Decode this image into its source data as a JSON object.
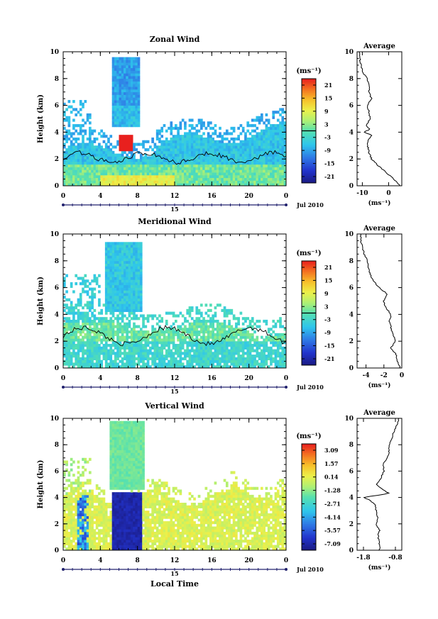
{
  "chart_data": [
    {
      "type": "heatmap",
      "title": "Zonal Wind",
      "xlabel": "",
      "ylabel": "Height (km)",
      "xlim": [
        0,
        24
      ],
      "ylim": [
        0,
        10
      ],
      "x_ticks": [
        "0",
        "4",
        "8",
        "12",
        "16",
        "20",
        "0"
      ],
      "y_ticks": [
        "0",
        "2",
        "4",
        "6",
        "8",
        "10"
      ],
      "date_day": "15",
      "date_label": "Jul 2010",
      "colorbar": {
        "unit": "(ms⁻¹)",
        "ticks": [
          "21",
          "15",
          "9",
          "3",
          "-3",
          "-9",
          "-15",
          "-21"
        ],
        "range": [
          -24,
          24
        ],
        "zero_line": true
      },
      "average_profile": {
        "title": "Average",
        "xlabel": "(ms⁻¹)",
        "x_ticks": [
          "-10",
          "0"
        ],
        "xlim": [
          -12,
          5
        ],
        "heights": [
          0,
          0.5,
          1,
          1.5,
          2,
          2.5,
          3,
          3.5,
          3.8,
          4,
          4.2,
          4.5,
          5,
          5.5,
          6,
          6.5,
          7,
          7.5,
          8,
          8.5,
          9,
          9.5,
          10
        ],
        "values": [
          4.5,
          2,
          -1,
          -4,
          -6.5,
          -7.5,
          -8,
          -7.5,
          -6.5,
          -9.5,
          -7,
          -8.5,
          -7,
          -7.5,
          -8,
          -6.5,
          -7.5,
          -7.5,
          -8,
          -10,
          -10.5,
          -11,
          -11
        ]
      }
    },
    {
      "type": "heatmap",
      "title": "Meridional Wind",
      "xlabel": "",
      "ylabel": "Height (km)",
      "xlim": [
        0,
        24
      ],
      "ylim": [
        0,
        10
      ],
      "x_ticks": [
        "0",
        "4",
        "8",
        "12",
        "16",
        "20",
        "0"
      ],
      "y_ticks": [
        "0",
        "2",
        "4",
        "6",
        "8",
        "10"
      ],
      "date_day": "15",
      "date_label": "Jul 2010",
      "colorbar": {
        "unit": "(ms⁻¹)",
        "ticks": [
          "21",
          "15",
          "9",
          "3",
          "-3",
          "-9",
          "-15",
          "-21"
        ],
        "range": [
          -24,
          24
        ],
        "zero_line": true
      },
      "average_profile": {
        "title": "Average",
        "xlabel": "(ms⁻¹)",
        "x_ticks": [
          "-4",
          "-2",
          "0"
        ],
        "xlim": [
          -5,
          0
        ],
        "heights": [
          0,
          0.5,
          1,
          1.5,
          2,
          2.5,
          3,
          3.5,
          4,
          4.5,
          5,
          5.5,
          6,
          6.5,
          7,
          7.5,
          8,
          8.5,
          9,
          9.5,
          10
        ],
        "values": [
          -0.2,
          -0.5,
          -0.6,
          -1.2,
          -0.7,
          -1.0,
          -1.2,
          -1.4,
          -1.2,
          -1.8,
          -2.0,
          -1.6,
          -2.5,
          -3.2,
          -3.5,
          -3.8,
          -3.8,
          -4.2,
          -4.4,
          -4.6,
          -4.6
        ]
      }
    },
    {
      "type": "heatmap",
      "title": "Vertical Wind",
      "xlabel": "Local Time",
      "ylabel": "Height (km)",
      "xlim": [
        0,
        24
      ],
      "ylim": [
        0,
        10
      ],
      "x_ticks": [
        "0",
        "4",
        "8",
        "12",
        "16",
        "20",
        "0"
      ],
      "y_ticks": [
        "0",
        "2",
        "4",
        "6",
        "8",
        "10"
      ],
      "date_day": "15",
      "date_label": "Jul 2010",
      "colorbar": {
        "unit": "(ms⁻¹)",
        "ticks": [
          "3.09",
          "1.57",
          "0.14",
          "-1.28",
          "-2.71",
          "-4.14",
          "-5.57",
          "-7.09"
        ],
        "range": [
          -8,
          3.8
        ],
        "zero_line": false
      },
      "average_profile": {
        "title": "Average",
        "xlabel": "(ms⁻¹)",
        "x_ticks": [
          "-1.8",
          "-0.8"
        ],
        "xlim": [
          -2.0,
          -0.6
        ],
        "heights": [
          0,
          0.5,
          1,
          1.5,
          2,
          2.5,
          3,
          3.5,
          3.8,
          4.0,
          4.3,
          4.6,
          5,
          5.5,
          6,
          6.5,
          7,
          7.5,
          8,
          8.5,
          9,
          9.5,
          10
        ],
        "values": [
          -1.3,
          -1.3,
          -1.35,
          -1.3,
          -1.4,
          -1.35,
          -1.4,
          -1.45,
          -1.6,
          -1.8,
          -1.0,
          -1.2,
          -1.4,
          -1.25,
          -1.15,
          -1.2,
          -1.05,
          -1.0,
          -1.0,
          -0.9,
          -0.85,
          -0.75,
          -0.7
        ]
      }
    }
  ]
}
